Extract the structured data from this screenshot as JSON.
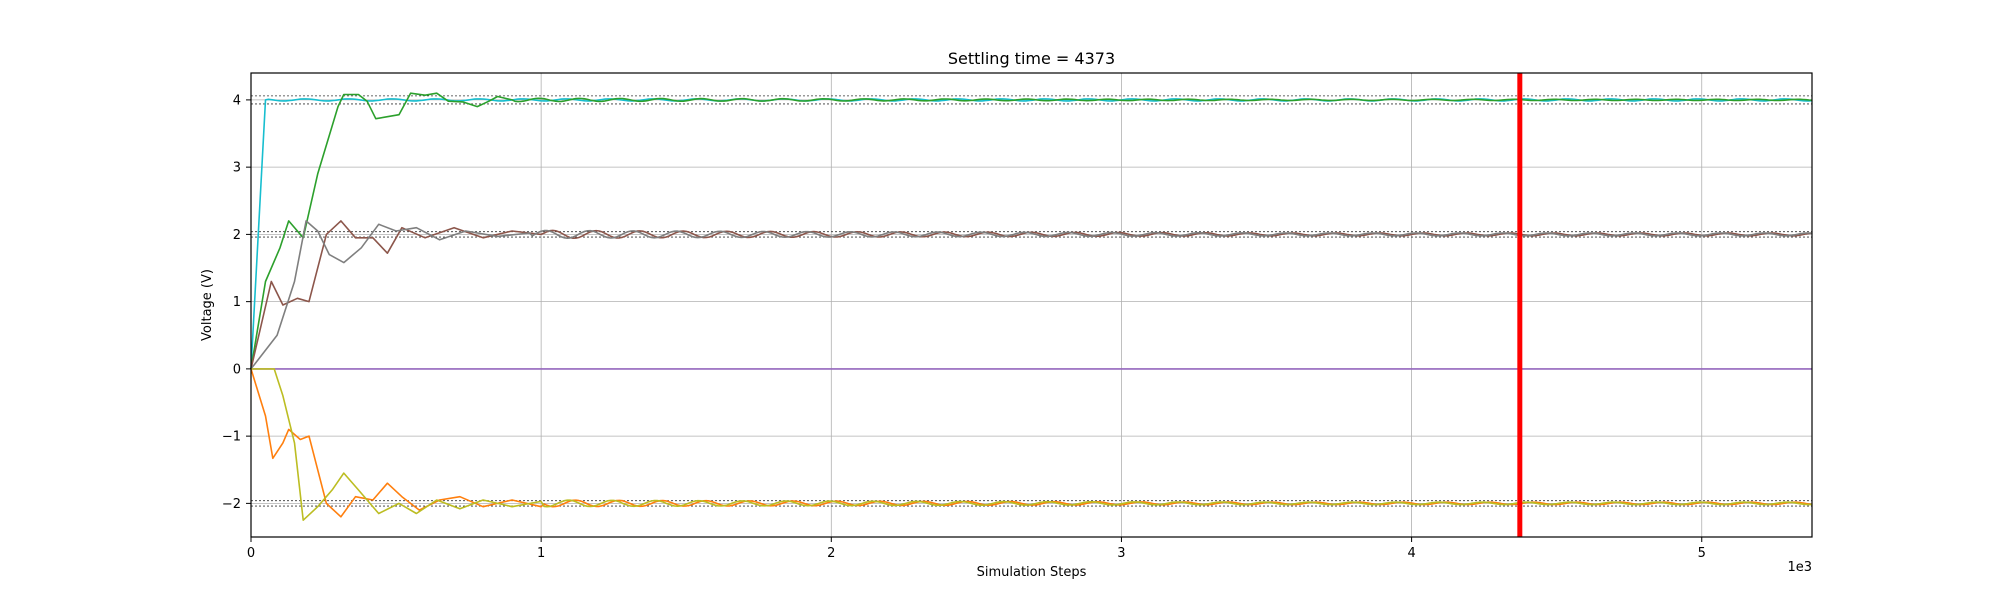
{
  "chart_data": {
    "type": "line",
    "title": "Settling time = 4373",
    "xlabel": "Simulation Steps",
    "ylabel": "Voltage (V)",
    "x_offset_label": "1e3",
    "xlim": [
      0,
      5380
    ],
    "ylim": [
      -2.5,
      4.4
    ],
    "x_ticks": [
      0,
      1000,
      2000,
      3000,
      4000,
      5000
    ],
    "x_tick_labels": [
      "0",
      "1",
      "2",
      "3",
      "4",
      "5"
    ],
    "y_ticks": [
      -2,
      -1,
      0,
      1,
      2,
      3,
      4
    ],
    "y_tick_labels": [
      "−2",
      "−1",
      "0",
      "1",
      "2",
      "3",
      "4"
    ],
    "grid": true,
    "settling_time": 4373,
    "settling_line_color": "#ff0000",
    "tolerance_bands": [
      {
        "center": 4,
        "low": 3.94,
        "high": 4.06
      },
      {
        "center": 2,
        "low": 1.96,
        "high": 2.04
      },
      {
        "center": -2,
        "low": -2.04,
        "high": -1.96
      }
    ],
    "series": [
      {
        "color": "#17becf",
        "final": 4,
        "shape": "step",
        "step_at": 50,
        "amp": 0.015,
        "period": 150
      },
      {
        "color": "#2ca02c",
        "final": 4,
        "shape": "transient",
        "points": [
          [
            0,
            0
          ],
          [
            50,
            1.3
          ],
          [
            100,
            1.8
          ],
          [
            130,
            2.2
          ],
          [
            180,
            1.95
          ],
          [
            230,
            2.9
          ],
          [
            300,
            3.9
          ],
          [
            320,
            4.08
          ],
          [
            370,
            4.08
          ],
          [
            400,
            3.98
          ],
          [
            430,
            3.72
          ],
          [
            470,
            3.75
          ],
          [
            510,
            3.78
          ],
          [
            550,
            4.1
          ],
          [
            600,
            4.07
          ],
          [
            640,
            4.1
          ],
          [
            680,
            3.98
          ],
          [
            730,
            3.97
          ],
          [
            780,
            3.9
          ],
          [
            820,
            3.98
          ],
          [
            850,
            4.05
          ],
          [
            900,
            4.0
          ]
        ],
        "amp": 0.025,
        "period": 140
      },
      {
        "color": "#8c564b",
        "final": 2,
        "shape": "transient",
        "points": [
          [
            0,
            0
          ],
          [
            70,
            1.3
          ],
          [
            110,
            0.95
          ],
          [
            160,
            1.05
          ],
          [
            200,
            1.0
          ],
          [
            260,
            2.0
          ],
          [
            310,
            2.2
          ],
          [
            360,
            1.95
          ],
          [
            420,
            1.95
          ],
          [
            470,
            1.72
          ],
          [
            520,
            2.1
          ],
          [
            600,
            1.95
          ],
          [
            700,
            2.1
          ],
          [
            800,
            1.95
          ],
          [
            900,
            2.05
          ],
          [
            1000,
            2.0
          ]
        ],
        "amp": 0.06,
        "period": 150
      },
      {
        "color": "#7f7f7f",
        "final": 2,
        "shape": "transient",
        "points": [
          [
            0,
            0
          ],
          [
            90,
            0.5
          ],
          [
            150,
            1.3
          ],
          [
            190,
            2.2
          ],
          [
            230,
            2.05
          ],
          [
            270,
            1.7
          ],
          [
            320,
            1.58
          ],
          [
            380,
            1.8
          ],
          [
            440,
            2.15
          ],
          [
            500,
            2.05
          ],
          [
            570,
            2.1
          ],
          [
            650,
            1.92
          ],
          [
            740,
            2.05
          ],
          [
            850,
            1.97
          ],
          [
            960,
            2.02
          ]
        ],
        "amp": 0.06,
        "period": 150
      },
      {
        "color": "#9467bd",
        "final": 0,
        "shape": "flat",
        "amp": 0,
        "period": 150
      },
      {
        "color": "#ff7f0e",
        "final": -2,
        "shape": "transient",
        "points": [
          [
            0,
            0
          ],
          [
            50,
            -0.7
          ],
          [
            75,
            -1.33
          ],
          [
            110,
            -1.1
          ],
          [
            130,
            -0.9
          ],
          [
            170,
            -1.05
          ],
          [
            200,
            -1.0
          ],
          [
            260,
            -2.0
          ],
          [
            310,
            -2.2
          ],
          [
            360,
            -1.9
          ],
          [
            420,
            -1.95
          ],
          [
            470,
            -1.7
          ],
          [
            520,
            -1.9
          ],
          [
            580,
            -2.1
          ],
          [
            650,
            -1.95
          ],
          [
            720,
            -1.9
          ],
          [
            800,
            -2.05
          ],
          [
            900,
            -1.95
          ],
          [
            1000,
            -2.05
          ]
        ],
        "amp": 0.05,
        "period": 150
      },
      {
        "color": "#bcbd22",
        "final": -2,
        "shape": "transient",
        "points": [
          [
            0,
            0
          ],
          [
            80,
            0
          ],
          [
            110,
            -0.4
          ],
          [
            150,
            -1.1
          ],
          [
            180,
            -2.25
          ],
          [
            230,
            -2.05
          ],
          [
            280,
            -1.8
          ],
          [
            320,
            -1.55
          ],
          [
            370,
            -1.8
          ],
          [
            440,
            -2.15
          ],
          [
            510,
            -2.0
          ],
          [
            570,
            -2.15
          ],
          [
            640,
            -1.95
          ],
          [
            720,
            -2.08
          ],
          [
            800,
            -1.95
          ],
          [
            900,
            -2.05
          ],
          [
            1000,
            -1.97
          ]
        ],
        "amp": 0.05,
        "period": 150
      }
    ]
  }
}
